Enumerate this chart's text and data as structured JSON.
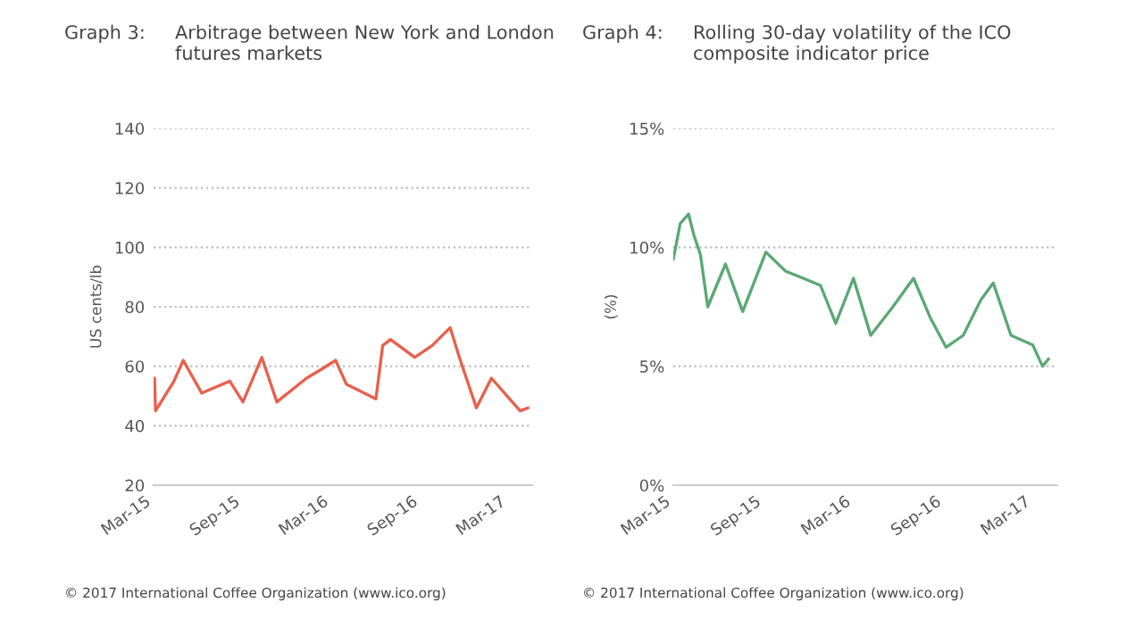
{
  "chart_data": [
    {
      "type": "line",
      "title": "Graph 3:",
      "subtitle": "Arbitrage between New York and London futures markets",
      "ylabel": "US cents/lb",
      "annotations": [
        "© 2017 International Coffee Organization (www.ico.org)"
      ],
      "x": [
        "2015-03-01",
        "2015-03-03",
        "2015-03-05",
        "2015-04-12",
        "2015-05-01",
        "2015-06-08",
        "2015-08-05",
        "2015-09-01",
        "2015-10-10",
        "2015-11-10",
        "2016-01-10",
        "2016-02-10",
        "2016-03-10",
        "2016-04-01",
        "2016-06-01",
        "2016-06-15",
        "2016-07-01",
        "2016-08-20",
        "2016-09-25",
        "2016-11-01",
        "2016-11-20",
        "2016-12-25",
        "2017-01-25",
        "2017-03-25",
        "2017-04-10"
      ],
      "series": [
        {
          "color": "#e8604c",
          "values": [
            51,
            56,
            45,
            55,
            62,
            51,
            55,
            48,
            63,
            48,
            56,
            59,
            62,
            54,
            49,
            67,
            69,
            63,
            67,
            73,
            63,
            46,
            56,
            45,
            46
          ]
        }
      ],
      "xlim": [
        "2015-03-01",
        "2017-04-19"
      ],
      "xticks": [
        {
          "value": "2015-03-01",
          "label": "Mar-15"
        },
        {
          "value": "2015-09-01",
          "label": "Sep-15"
        },
        {
          "value": "2016-03-01",
          "label": "Mar-16"
        },
        {
          "value": "2016-09-01",
          "label": "Sep-16"
        },
        {
          "value": "2017-03-01",
          "label": "Mar-17"
        }
      ],
      "ylim": [
        20,
        140
      ],
      "yticks": [
        20,
        40,
        60,
        80,
        100,
        120,
        140
      ],
      "grid": "y"
    },
    {
      "type": "line",
      "title": "Graph 4:",
      "subtitle": "Rolling 30-day volatility of the ICO composite indicator price",
      "ylabel": "(%)",
      "annotations": [
        "© 2017 International Coffee Organization (www.ico.org)"
      ],
      "x": [
        "2015-03-01",
        "2015-03-15",
        "2015-04-01",
        "2015-04-12",
        "2015-04-25",
        "2015-05-10",
        "2015-06-15",
        "2015-07-20",
        "2015-09-05",
        "2015-10-15",
        "2015-11-20",
        "2015-12-25",
        "2016-01-25",
        "2016-03-01",
        "2016-04-05",
        "2016-05-20",
        "2016-07-01",
        "2016-08-05",
        "2016-09-05",
        "2016-10-10",
        "2016-11-15",
        "2016-12-10",
        "2017-01-15",
        "2017-02-28",
        "2017-03-20",
        "2017-04-01"
      ],
      "series": [
        {
          "color": "#5aa874",
          "values": [
            9.5,
            11.0,
            11.4,
            10.5,
            9.7,
            7.5,
            9.3,
            7.3,
            9.8,
            9.0,
            8.7,
            8.4,
            6.8,
            8.7,
            6.3,
            7.5,
            8.7,
            7.0,
            5.8,
            6.3,
            7.8,
            8.5,
            6.3,
            5.9,
            5.0,
            5.3
          ]
        }
      ],
      "xlim": [
        "2015-03-01",
        "2017-04-19"
      ],
      "xticks": [
        {
          "value": "2015-03-01",
          "label": "Mar-15"
        },
        {
          "value": "2015-09-01",
          "label": "Sep-15"
        },
        {
          "value": "2016-03-01",
          "label": "Mar-16"
        },
        {
          "value": "2016-09-01",
          "label": "Sep-16"
        },
        {
          "value": "2017-03-01",
          "label": "Mar-17"
        }
      ],
      "ylim": [
        0,
        15
      ],
      "yticks": [
        {
          "value": 0,
          "label": "0%"
        },
        {
          "value": 5,
          "label": "5%"
        },
        {
          "value": 10,
          "label": "10%"
        },
        {
          "value": 15,
          "label": "15%"
        }
      ],
      "grid": "y"
    }
  ]
}
